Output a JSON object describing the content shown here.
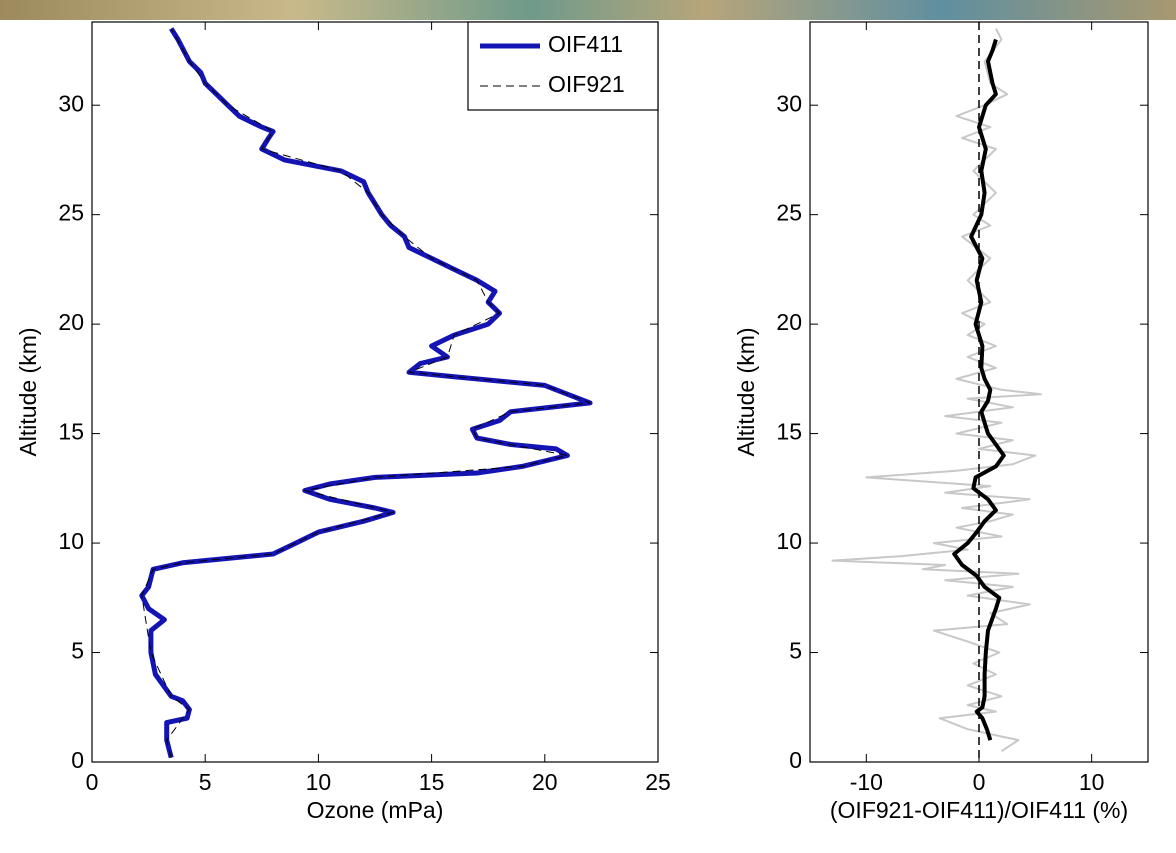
{
  "chart_data": [
    {
      "type": "line",
      "xlabel": "Ozone (mPa)",
      "ylabel": "Altitude (km)",
      "xlim": [
        0,
        25
      ],
      "ylim": [
        0,
        33.8
      ],
      "xticks": [
        0,
        5,
        10,
        15,
        20,
        25
      ],
      "yticks": [
        0,
        5,
        10,
        15,
        20,
        25,
        30
      ],
      "legend": "upper right",
      "series": [
        {
          "name": "OIF411",
          "color": "#1414b4",
          "linestyle": "solid",
          "linewidth": 5,
          "x": [
            3.5,
            3.3,
            3.3,
            4.2,
            4.3,
            4.0,
            3.5,
            2.8,
            2.6,
            2.6,
            3.2,
            2.5,
            2.2,
            2.5,
            2.7,
            4,
            6,
            8,
            9,
            10,
            12,
            13.3,
            12.5,
            10.5,
            9.4,
            10.5,
            12.5,
            17,
            19,
            21,
            20.5,
            18.5,
            17,
            16.8,
            18,
            18.5,
            22,
            21,
            20,
            16,
            14,
            14.5,
            15.7,
            15,
            16,
            17.5,
            18,
            17.5,
            17.8,
            17,
            16,
            15,
            14,
            13.8,
            13.2,
            12.8,
            12.5,
            12.2,
            12,
            11,
            8.5,
            7.5,
            7.8,
            8,
            7.5,
            6.5,
            6,
            5.5,
            5,
            4.8,
            4.3,
            3.8,
            3.5
          ],
          "y": [
            0.2,
            1,
            1.8,
            2,
            2.4,
            2.8,
            3,
            4,
            5,
            6,
            6.5,
            7,
            7.6,
            8,
            8.8,
            9.1,
            9.3,
            9.5,
            10,
            10.5,
            11,
            11.4,
            11.6,
            12,
            12.4,
            12.7,
            13,
            13.2,
            13.5,
            14,
            14.3,
            14.5,
            14.8,
            15.2,
            15.6,
            16,
            16.4,
            16.8,
            17.2,
            17.6,
            17.8,
            18.2,
            18.5,
            19,
            19.5,
            20,
            20.5,
            21,
            21.5,
            22,
            22.5,
            23,
            23.5,
            24,
            24.5,
            25,
            25.5,
            26,
            26.5,
            27,
            27.5,
            28,
            28.5,
            28.8,
            29,
            29.5,
            30,
            30.5,
            31,
            31.5,
            32,
            33,
            33.5
          ]
        },
        {
          "name": "OIF921",
          "color": "#000000",
          "linestyle": "dashed",
          "linewidth": 1,
          "x": [
            3.5,
            3.3,
            4.3,
            3.5,
            2.6,
            2.2,
            2.7,
            4,
            8,
            10,
            13.3,
            9.4,
            12.5,
            19,
            21,
            17,
            16.8,
            18.5,
            22,
            20,
            14,
            15.7,
            16,
            18,
            17.5,
            17,
            15,
            13.8,
            12.8,
            12.2,
            11,
            7.5,
            8,
            6,
            5,
            4.3,
            3.5
          ],
          "y": [
            0.2,
            1,
            2.4,
            3,
            5,
            7.6,
            8.8,
            9.1,
            9.5,
            10.5,
            11.4,
            12.4,
            13,
            13.5,
            14,
            14.8,
            15.2,
            16,
            16.4,
            17.2,
            17.8,
            18.5,
            19.5,
            20.5,
            21,
            22,
            23,
            24,
            25,
            26,
            27,
            28,
            28.8,
            30,
            31,
            32,
            33.5
          ]
        }
      ]
    },
    {
      "type": "line",
      "xlabel": "(OIF921-OIF411)/OIF411 (%)",
      "ylabel": "Altitude (km)",
      "xlim": [
        -15,
        15
      ],
      "ylim": [
        0,
        33.8
      ],
      "xticks": [
        -10,
        0,
        10
      ],
      "yticks": [
        0,
        5,
        10,
        15,
        20,
        25,
        30
      ],
      "vline": 0,
      "series": [
        {
          "color": "#c8c8c8",
          "linestyle": "solid",
          "linewidth": 2,
          "x": [
            2,
            3.5,
            -1,
            -3.5,
            1.5,
            -1,
            2,
            -1,
            1.5,
            -0.5,
            1.8,
            -1,
            -4,
            2.5,
            1,
            4.5,
            -1,
            3,
            -3,
            3.5,
            -5,
            -3,
            -13,
            -7,
            -1,
            -4,
            2,
            -2,
            1,
            3,
            -1.5,
            4.5,
            -3,
            1,
            -10,
            -2,
            3,
            5,
            0,
            3,
            -2,
            2,
            -3,
            3,
            -1,
            5.5,
            2,
            -2,
            1.5,
            -1,
            1.5,
            -1,
            0.5,
            -1.5,
            1,
            -1,
            1,
            -1.5,
            1,
            -0.5,
            1.5,
            -0.5,
            1.5,
            -1.5,
            1,
            -2,
            0.5,
            2.5,
            1,
            0.5,
            2,
            1.5
          ],
          "y": [
            0.5,
            1,
            1.5,
            2,
            2.3,
            2.6,
            3,
            3.5,
            4,
            4.5,
            5,
            5.5,
            6,
            6.3,
            6.8,
            7.2,
            7.6,
            8,
            8.3,
            8.6,
            8.8,
            9,
            9.2,
            9.4,
            9.7,
            10,
            10.3,
            10.7,
            11,
            11.3,
            11.6,
            12,
            12.3,
            12.6,
            13,
            13.3,
            13.6,
            14,
            14.3,
            14.7,
            15,
            15.5,
            15.8,
            16.2,
            16.6,
            16.8,
            17,
            17.5,
            18,
            18.5,
            19,
            19.5,
            20,
            20.5,
            21,
            22,
            23,
            24,
            24.5,
            25,
            26,
            27,
            28,
            28.5,
            29,
            29.5,
            30,
            30.5,
            31,
            32,
            33,
            33.5
          ]
        },
        {
          "color": "#000000",
          "linestyle": "solid",
          "linewidth": 4,
          "x": [
            1,
            0.7,
            0.3,
            -0.2,
            0.3,
            0.5,
            0.5,
            0.6,
            0.8,
            1.5,
            1.8,
            0.5,
            -0.2,
            -1.5,
            -2.2,
            -1,
            -0.2,
            0.5,
            1.5,
            0.8,
            -0.5,
            -0.3,
            1.5,
            2.2,
            1.5,
            0.8,
            0.5,
            0.2,
            0.8,
            1,
            0.5,
            0.2,
            0.3,
            -0.3,
            0.2,
            -0.2,
            0.3,
            -0.7,
            0.2,
            0.5,
            0.2,
            0.6,
            0,
            0.6,
            1.5,
            1.2,
            0.8,
            1.2,
            1.5
          ],
          "y": [
            1,
            1.5,
            2,
            2.3,
            2.5,
            3,
            4,
            5,
            6,
            7,
            7.5,
            8,
            8.5,
            9,
            9.5,
            10,
            10.5,
            11,
            11.5,
            12,
            12.5,
            13,
            13.5,
            14,
            14.5,
            15,
            15.5,
            16,
            16.5,
            17,
            17.5,
            18,
            19,
            20,
            21,
            22,
            23,
            24,
            25,
            26,
            27,
            28,
            29,
            30,
            30.5,
            31,
            32,
            32.5,
            33
          ]
        }
      ]
    }
  ]
}
